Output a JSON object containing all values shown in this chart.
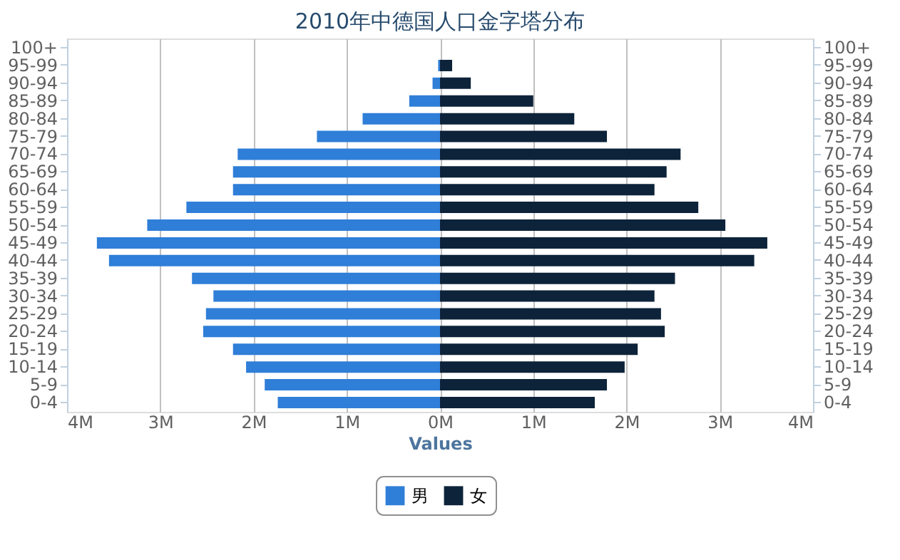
{
  "chart_data": {
    "type": "bar",
    "orientation": "horizontal",
    "title": "2010年中德国人口金字塔分布",
    "xlabel": "Values",
    "categories": [
      "100+",
      "95-99",
      "90-94",
      "85-89",
      "80-84",
      "75-79",
      "70-74",
      "65-69",
      "60-64",
      "55-59",
      "50-54",
      "45-49",
      "40-44",
      "35-39",
      "30-34",
      "25-29",
      "20-24",
      "15-19",
      "10-14",
      "5-9",
      "0-4"
    ],
    "series": [
      {
        "name": "男",
        "color": "#2f7ed8",
        "values": [
          0,
          -20000,
          -80000,
          -330000,
          -830000,
          -1320000,
          -2170000,
          -2220000,
          -2220000,
          -2720000,
          -3140000,
          -3680000,
          -3550000,
          -2660000,
          -2430000,
          -2510000,
          -2540000,
          -2220000,
          -2080000,
          -1880000,
          -1740000
        ]
      },
      {
        "name": "女",
        "color": "#0d233a",
        "values": [
          0,
          130000,
          330000,
          1000000,
          1440000,
          1790000,
          2580000,
          2430000,
          2300000,
          2770000,
          3060000,
          3510000,
          3370000,
          2520000,
          2300000,
          2370000,
          2410000,
          2120000,
          1980000,
          1790000,
          1660000
        ]
      }
    ],
    "xlim": [
      -4000000,
      4000000
    ],
    "xticks": [
      {
        "value": -4000000,
        "label": "4M"
      },
      {
        "value": -3000000,
        "label": "3M"
      },
      {
        "value": -2000000,
        "label": "2M"
      },
      {
        "value": -1000000,
        "label": "1M"
      },
      {
        "value": 0,
        "label": "0M"
      },
      {
        "value": 1000000,
        "label": "1M"
      },
      {
        "value": 2000000,
        "label": "2M"
      },
      {
        "value": 3000000,
        "label": "3M"
      },
      {
        "value": 4000000,
        "label": "4M"
      }
    ],
    "stacked": true,
    "grid": "x",
    "legend": "bottom"
  }
}
